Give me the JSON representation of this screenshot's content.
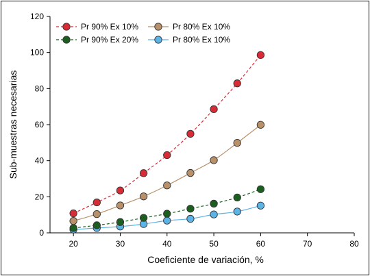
{
  "chart_data": {
    "type": "scatter",
    "title": "",
    "xlabel": "Coeficiente de variación, %",
    "ylabel": "Sub-muestras necesarias",
    "xlim": [
      15,
      80
    ],
    "ylim": [
      0,
      120
    ],
    "xticks": [
      20,
      30,
      40,
      50,
      60,
      70,
      80
    ],
    "yticks": [
      0,
      20,
      40,
      60,
      80,
      100,
      120
    ],
    "grid": false,
    "legend": "top-left",
    "x": [
      20,
      25,
      30,
      35,
      40,
      45,
      50,
      55,
      60
    ],
    "series": [
      {
        "name": "Pr 90% Ex 10%",
        "values": [
          10.8,
          16.9,
          23.5,
          33.1,
          43.1,
          54.9,
          68.6,
          82.9,
          98.6
        ],
        "color": "#d92b36",
        "line": "dashed"
      },
      {
        "name": "Pr 80% Ex 10%",
        "values": [
          6.6,
          10.4,
          15.2,
          20.2,
          26.3,
          33.2,
          40.3,
          49.9,
          59.9
        ],
        "color": "#b8916a",
        "line": "solid"
      },
      {
        "name": "Pr 90% Ex 20%",
        "values": [
          2.7,
          4.2,
          6.0,
          8.3,
          10.6,
          13.4,
          16.2,
          19.6,
          24.2
        ],
        "color": "#1b5e20",
        "line": "dashed"
      },
      {
        "name": "Pr 80% Ex 10%",
        "values": [
          1.8,
          2.7,
          3.5,
          4.9,
          6.8,
          7.8,
          10.2,
          11.8,
          15.1
        ],
        "color": "#5bb3e6",
        "line": "solid"
      }
    ]
  }
}
